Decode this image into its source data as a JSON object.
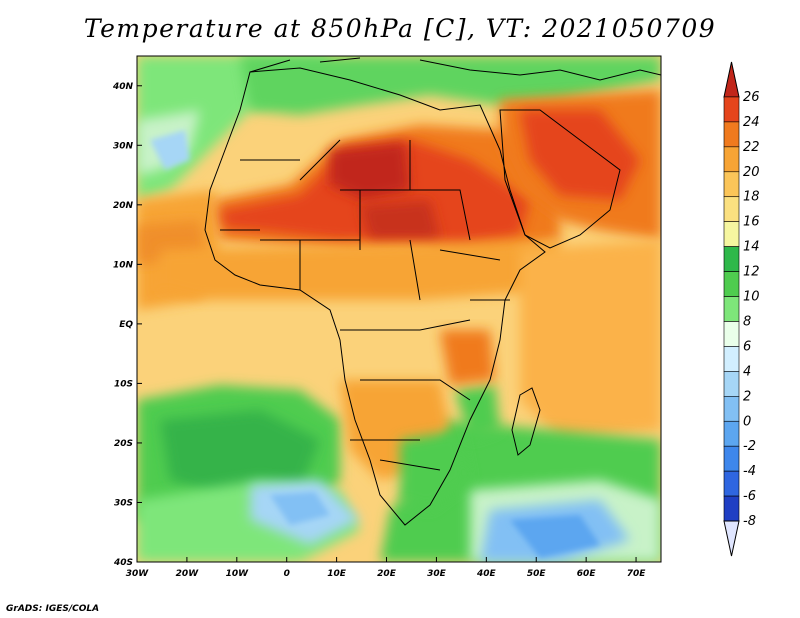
{
  "title": "Temperature at 850hPa [C], VT: 2021050709",
  "credit": "GrADS: IGES/COLA",
  "map": {
    "type": "heatmap",
    "lon_range": [
      -30,
      75
    ],
    "lat_range": [
      -40,
      45
    ],
    "x_ticks": [
      "30W",
      "20W",
      "10W",
      "0",
      "10E",
      "20E",
      "30E",
      "40E",
      "50E",
      "60E",
      "70E"
    ],
    "y_ticks": [
      "40S",
      "30S",
      "20S",
      "10S",
      "EQ",
      "10N",
      "20N",
      "30N",
      "40N"
    ],
    "colorbar": {
      "levels": [
        "-8",
        "-6",
        "-4",
        "-2",
        "0",
        "2",
        "4",
        "6",
        "8",
        "10",
        "12",
        "14",
        "16",
        "18",
        "20",
        "22",
        "24",
        "26"
      ],
      "colors": [
        "#0b1a8a",
        "#1f3fc4",
        "#2f66e0",
        "#3e87ec",
        "#5ca6f0",
        "#82c0f4",
        "#a6d6f6",
        "#d2efff",
        "#eaffea",
        "#7ee67a",
        "#4fcc4f",
        "#2fb84a",
        "#f6f6a0",
        "#fbe080",
        "#fbc559",
        "#f7a435",
        "#f07a1e",
        "#e5451c",
        "#c1261a"
      ]
    }
  }
}
